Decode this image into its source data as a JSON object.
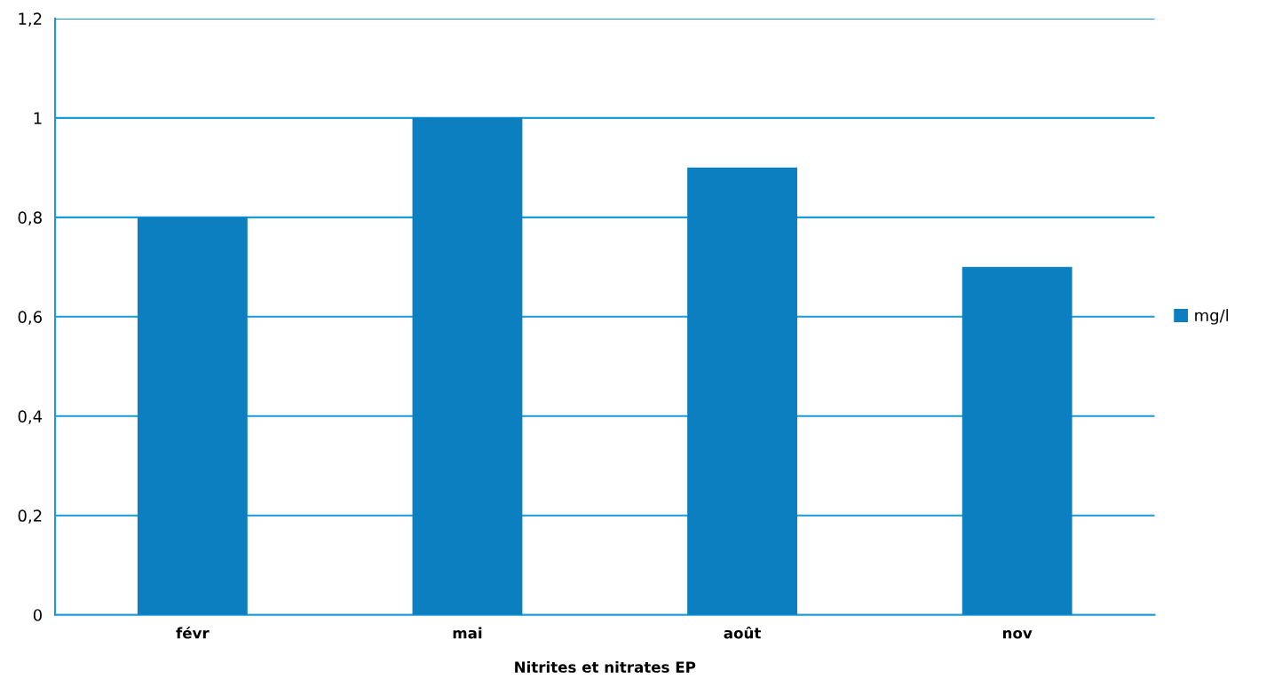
{
  "chart_data": {
    "type": "bar",
    "xlabel": "Nitrites et nitrates EP",
    "categories": [
      "févr",
      "mai",
      "août",
      "nov"
    ],
    "series": [
      {
        "name": "mg/l",
        "color": "#0b7fc0",
        "values": [
          0.8,
          1.0,
          0.9,
          0.7
        ]
      }
    ],
    "ylim": [
      0,
      1.2
    ],
    "yticks": [
      {
        "value": 0,
        "label": "0"
      },
      {
        "value": 0.2,
        "label": "0,2"
      },
      {
        "value": 0.4,
        "label": "0,4"
      },
      {
        "value": 0.6,
        "label": "0,6"
      },
      {
        "value": 0.8,
        "label": "0,8"
      },
      {
        "value": 1,
        "label": "1"
      },
      {
        "value": 1.2,
        "label": "1,2"
      }
    ],
    "grid": "y",
    "legend": "right"
  }
}
